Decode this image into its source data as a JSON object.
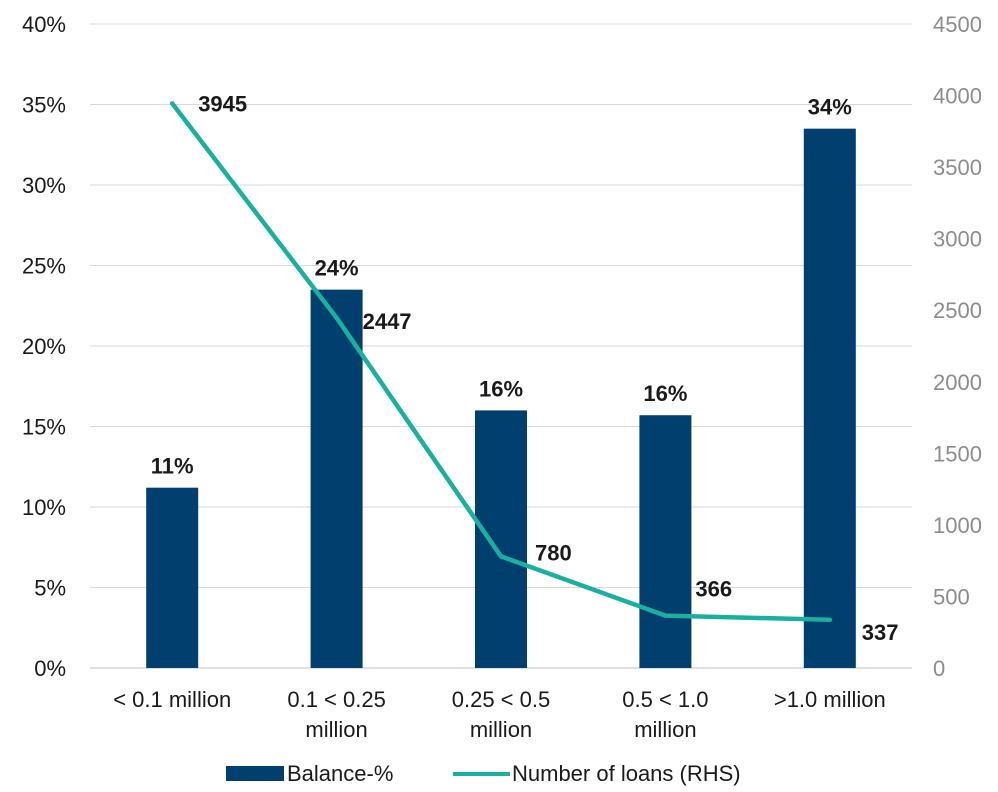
{
  "chart_data": {
    "type": "bar",
    "categories": [
      [
        "< 0.1 million"
      ],
      [
        "0.1 < 0.25",
        "million"
      ],
      [
        "0.25 < 0.5",
        "million"
      ],
      [
        "0.5 < 1.0",
        "million"
      ],
      [
        ">1.0 million"
      ]
    ],
    "series": [
      {
        "name": "Balance-%",
        "type": "bar",
        "axis": "left",
        "values": [
          11.2,
          23.5,
          16.0,
          15.7,
          33.5
        ],
        "labels": [
          "11%",
          "24%",
          "16%",
          "16%",
          "34%"
        ],
        "color": "#003f6e"
      },
      {
        "name": "Number of loans (RHS)",
        "type": "line",
        "axis": "right",
        "values": [
          3945,
          2447,
          780,
          366,
          337
        ],
        "labels": [
          "3945",
          "2447",
          "780",
          "366",
          "337"
        ],
        "color": "#1ab0a0"
      }
    ],
    "y_left": {
      "min": 0,
      "max": 40,
      "step": 5,
      "tick_labels": [
        "0%",
        "5%",
        "10%",
        "15%",
        "20%",
        "25%",
        "30%",
        "35%",
        "40%"
      ]
    },
    "y_right": {
      "min": 0,
      "max": 4500,
      "step": 500,
      "tick_labels": [
        "0",
        "500",
        "1000",
        "1500",
        "2000",
        "2500",
        "3000",
        "3500",
        "4000",
        "4500"
      ]
    },
    "grid": true,
    "legend_position": "bottom"
  }
}
